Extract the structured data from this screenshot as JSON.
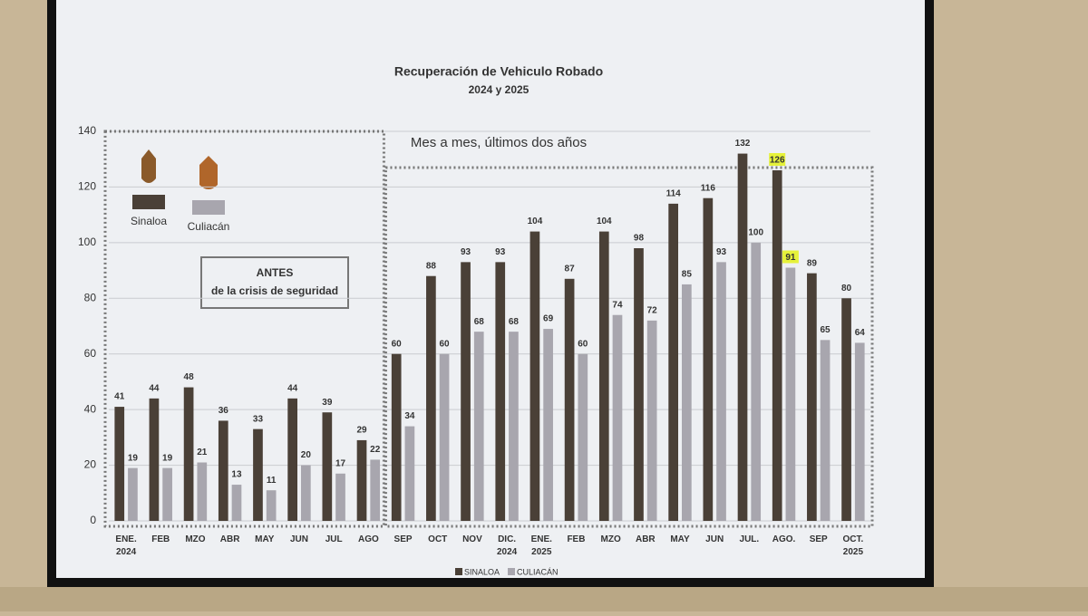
{
  "chart_data": {
    "type": "bar",
    "title": "Recuperación de Vehiculo Robado",
    "subtitle": "2024 y 2025",
    "caption": "Mes a mes, últimos dos años",
    "annotation": [
      "ANTES",
      "de la crisis de seguridad"
    ],
    "categories": [
      "ENE. 2024",
      "FEB",
      "MZO",
      "ABR",
      "MAY",
      "JUN",
      "JUL",
      "AGO",
      "SEP",
      "OCT",
      "NOV",
      "DIC. 2024",
      "ENE. 2025",
      "FEB",
      "MZO",
      "ABR",
      "MAY",
      "JUN",
      "JUL.",
      "AGO.",
      "SEP",
      "OCT. 2025"
    ],
    "series": [
      {
        "name": "Sinaloa",
        "legend_label": "SINALOA",
        "color": "#4a4037",
        "values": [
          41,
          44,
          48,
          36,
          33,
          44,
          39,
          29,
          60,
          88,
          93,
          93,
          104,
          87,
          104,
          98,
          114,
          116,
          132,
          126,
          89,
          80
        ]
      },
      {
        "name": "Culiacán",
        "legend_label": "CULIACÁN",
        "color": "#a8a6ae",
        "values": [
          19,
          19,
          21,
          13,
          11,
          20,
          17,
          22,
          34,
          60,
          68,
          68,
          69,
          60,
          74,
          72,
          85,
          93,
          100,
          91,
          65,
          64
        ]
      }
    ],
    "highlighted": "AGO.",
    "highlight_color": "#e6f23a",
    "ylim": [
      0,
      140
    ],
    "yticks": [
      0,
      20,
      40,
      60,
      80,
      100,
      120,
      140
    ],
    "grid": true
  }
}
